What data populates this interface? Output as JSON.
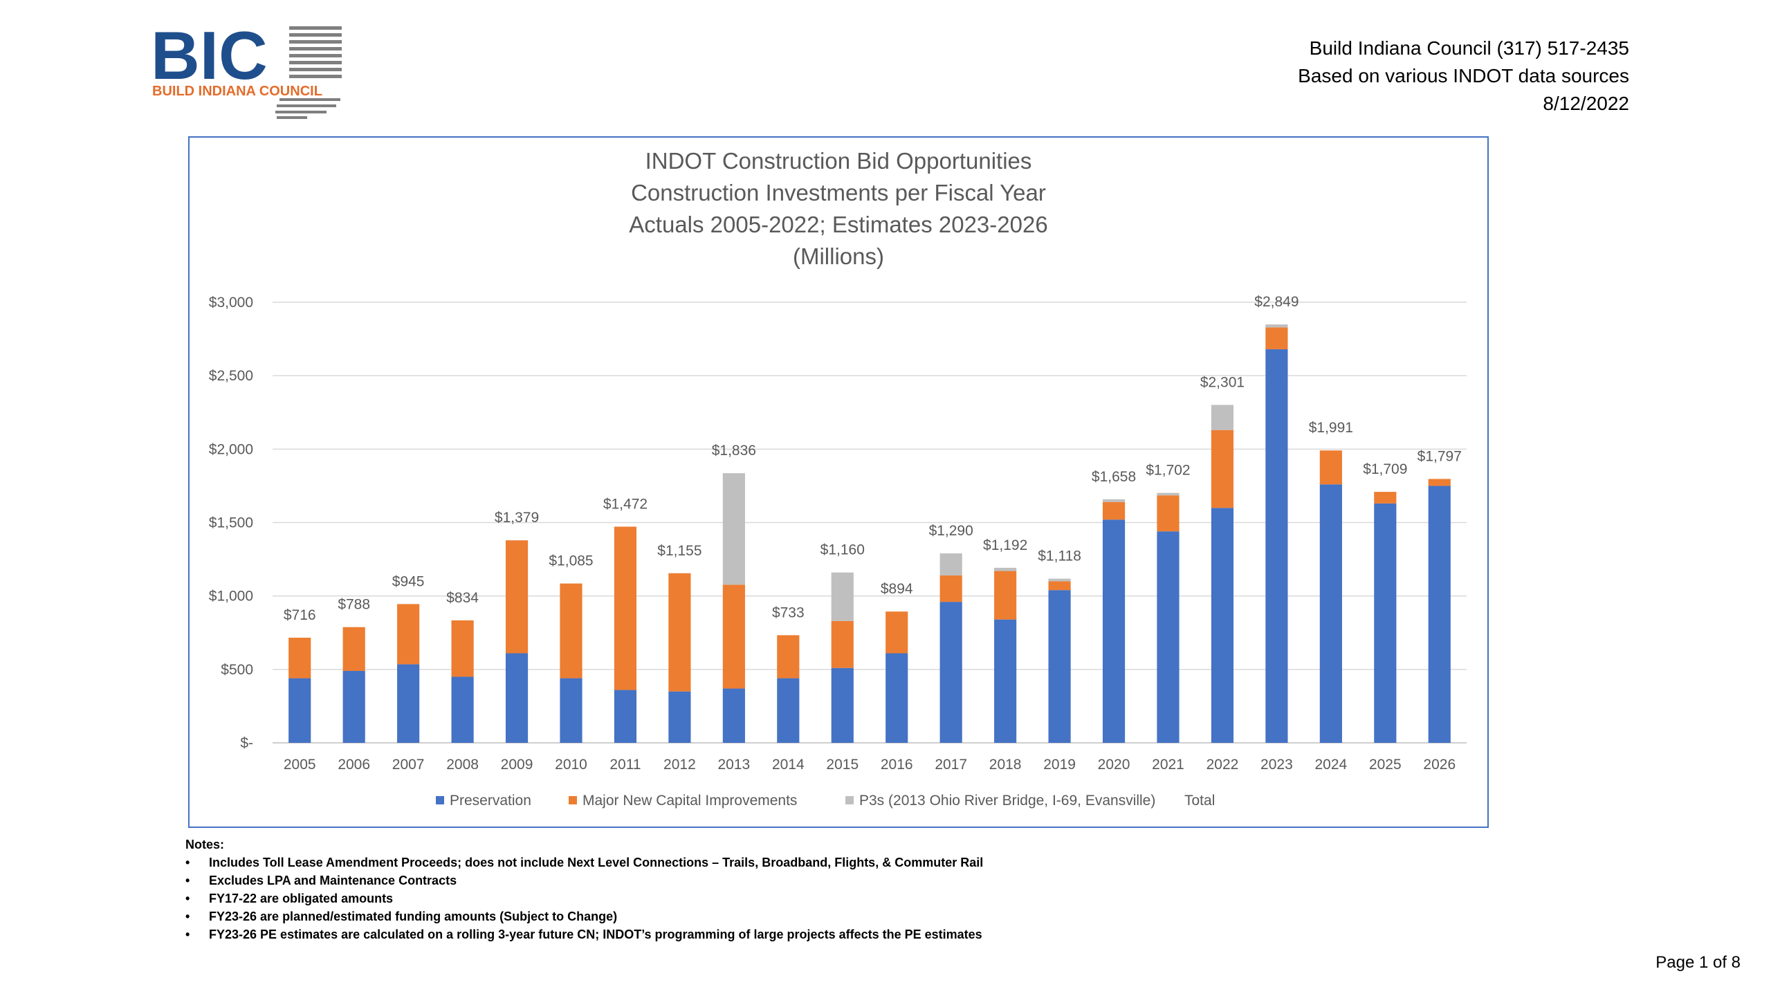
{
  "header": {
    "logo": {
      "text": "BIC",
      "subtitle": "BUILD INDIANA COUNCIL"
    },
    "line1": "Build Indiana Council (317) 517-2435",
    "line2": "Based on various INDOT data sources",
    "line3": "8/12/2022"
  },
  "colors": {
    "preservation": "#4472C4",
    "major": "#ED7D31",
    "p3": "#BFBFBF",
    "frame": "#4472C4",
    "logo_blue": "#1F4E8C",
    "logo_orange": "#E46C2B"
  },
  "chart_data": {
    "type": "bar",
    "stacked": true,
    "title_lines": [
      "INDOT Construction Bid Opportunities",
      "Construction Investments per Fiscal Year",
      "Actuals 2005-2022; Estimates 2023-2026",
      "(Millions)"
    ],
    "categories": [
      "2005",
      "2006",
      "2007",
      "2008",
      "2009",
      "2010",
      "2011",
      "2012",
      "2013",
      "2014",
      "2015",
      "2016",
      "2017",
      "2018",
      "2019",
      "2020",
      "2021",
      "2022",
      "2023",
      "2024",
      "2025",
      "2026"
    ],
    "series": [
      {
        "name": "Preservation",
        "values": [
          440,
          490,
          535,
          450,
          610,
          440,
          360,
          350,
          370,
          440,
          510,
          610,
          960,
          840,
          1040,
          1520,
          1440,
          1600,
          2680,
          1760,
          1630,
          1750
        ]
      },
      {
        "name": "Major New Capital Improvements",
        "values": [
          276,
          298,
          410,
          384,
          769,
          645,
          1112,
          805,
          707,
          293,
          320,
          284,
          180,
          330,
          60,
          120,
          245,
          530,
          149,
          231,
          79,
          47
        ]
      },
      {
        "name": "P3s (2013 Ohio River Bridge, I-69, Evansville)",
        "values": [
          0,
          0,
          0,
          0,
          0,
          0,
          0,
          0,
          759,
          0,
          330,
          0,
          150,
          22,
          18,
          18,
          17,
          171,
          20,
          0,
          0,
          0
        ]
      }
    ],
    "totals_series_name": "Total",
    "total_labels": [
      "$716",
      "$788",
      "$945",
      "$834",
      "$1,379",
      "$1,085",
      "$1,472",
      "$1,155",
      "$1,836",
      "$733",
      "$1,160",
      "$894",
      "$1,290",
      "$1,192",
      "$1,118",
      "$1,658",
      "$1,702",
      "$2,301",
      "$2,849",
      "$1,991",
      "$1,709",
      "$1,797"
    ],
    "totals": [
      716,
      788,
      945,
      834,
      1379,
      1085,
      1472,
      1155,
      1836,
      733,
      1160,
      894,
      1290,
      1192,
      1118,
      1658,
      1702,
      2301,
      2849,
      1991,
      1709,
      1797
    ],
    "y_ticks": [
      0,
      500,
      1000,
      1500,
      2000,
      2500,
      3000
    ],
    "y_tick_labels": [
      "$-",
      "$500",
      "$1,000",
      "$1,500",
      "$2,000",
      "$2,500",
      "$3,000"
    ],
    "ylim": [
      0,
      3000
    ],
    "grid": true,
    "legend_position": "bottom"
  },
  "notes": {
    "heading": "Notes:",
    "items": [
      "Includes Toll Lease Amendment Proceeds; does not include Next Level Connections – Trails, Broadband, Flights, & Commuter Rail",
      "Excludes LPA and Maintenance Contracts",
      "FY17-22 are obligated amounts",
      "FY23-26 are planned/estimated funding amounts (Subject to Change)",
      "FY23-26 PE estimates are calculated on a rolling 3-year future CN;  INDOT’s programming of large projects affects the PE estimates"
    ]
  },
  "footer": {
    "page": "Page 1 of 8"
  }
}
